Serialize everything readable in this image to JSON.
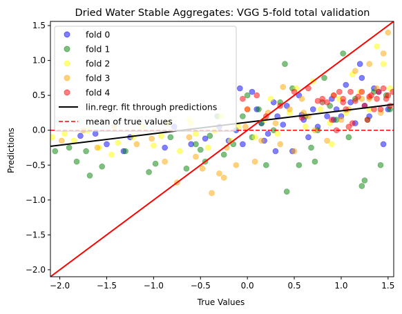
{
  "chart_data": {
    "type": "scatter",
    "title": "Dried Water Stable Aggregates: VGG 5-fold total validation",
    "xlabel": "True Values",
    "ylabel": "Predictions",
    "xlim": [
      -2.1,
      1.56
    ],
    "ylim": [
      -2.1,
      1.56
    ],
    "xticks": [
      -2.0,
      -1.5,
      -1.0,
      -0.5,
      0.0,
      0.5,
      1.0,
      1.5
    ],
    "yticks": [
      -2.0,
      -1.5,
      -1.0,
      -0.5,
      0.0,
      0.5,
      1.0,
      1.5
    ],
    "xtick_labels": [
      "−2.0",
      "−1.5",
      "−1.0",
      "−0.5",
      "0.0",
      "0.5",
      "1.0",
      "1.5"
    ],
    "ytick_labels": [
      "−2.0",
      "−1.5",
      "−1.0",
      "−0.5",
      "0.0",
      "0.5",
      "1.0",
      "1.5"
    ],
    "grid": false,
    "legend_position": "top-left",
    "series": [
      {
        "name": "fold 0",
        "color": "#0000ff",
        "x": [
          -1.78,
          -1.62,
          -1.5,
          -1.32,
          -1.25,
          -0.88,
          -0.78,
          -0.6,
          -0.45,
          -0.3,
          -0.2,
          -0.12,
          -0.05,
          0.05,
          0.1,
          0.15,
          0.22,
          0.28,
          0.32,
          0.38,
          0.42,
          0.48,
          0.55,
          0.6,
          0.65,
          0.7,
          0.75,
          0.8,
          0.85,
          0.9,
          0.95,
          1.0,
          1.05,
          1.1,
          1.15,
          1.2,
          1.25,
          1.3,
          1.35,
          1.4,
          1.45,
          1.5,
          -0.08,
          0.3,
          0.92,
          1.22,
          0.58,
          0.18
        ],
        "y": [
          -0.08,
          -0.05,
          -0.2,
          -0.3,
          -0.1,
          -0.25,
          0.05,
          -0.2,
          -0.12,
          0.05,
          -0.15,
          0.0,
          -0.2,
          0.55,
          0.3,
          0.1,
          -0.05,
          0.4,
          0.2,
          0.08,
          0.35,
          -0.3,
          0.5,
          0.15,
          -0.1,
          0.3,
          0.05,
          0.4,
          0.2,
          0.45,
          0.3,
          0.2,
          0.65,
          0.4,
          0.1,
          0.95,
          0.35,
          0.2,
          0.6,
          0.55,
          -0.2,
          0.3,
          0.6,
          -0.3,
          0.15,
          0.75,
          0.22,
          -0.15
        ]
      },
      {
        "name": "fold 1",
        "color": "#008000",
        "x": [
          -2.05,
          -1.9,
          -1.82,
          -1.72,
          -1.68,
          -1.55,
          -1.3,
          -1.05,
          -0.98,
          -0.82,
          -0.65,
          -0.55,
          -0.5,
          -0.45,
          -0.4,
          -0.32,
          -0.25,
          -0.15,
          -0.05,
          0.05,
          0.12,
          0.2,
          0.28,
          0.35,
          0.42,
          0.48,
          0.55,
          0.62,
          0.68,
          0.75,
          0.82,
          0.88,
          0.95,
          1.02,
          1.08,
          1.15,
          1.22,
          1.28,
          1.35,
          1.42,
          1.48,
          1.52,
          0.4,
          1.25,
          0.72,
          0.0,
          0.15
        ],
        "y": [
          -0.3,
          -0.25,
          -0.45,
          -0.3,
          -0.65,
          -0.52,
          -0.3,
          -0.6,
          -0.48,
          -0.1,
          -0.55,
          -0.2,
          -0.28,
          -0.45,
          -0.08,
          0.2,
          -0.35,
          -0.2,
          0.2,
          -0.1,
          0.3,
          -0.5,
          0.0,
          0.4,
          -0.88,
          0.6,
          -0.5,
          0.2,
          -0.25,
          0.0,
          0.75,
          0.35,
          0.15,
          1.1,
          -0.1,
          0.45,
          -0.8,
          0.15,
          0.55,
          -0.5,
          0.5,
          0.3,
          0.95,
          -0.72,
          -0.45,
          0.5,
          0.1
        ]
      },
      {
        "name": "fold 2",
        "color": "#ffff00",
        "x": [
          -2.08,
          -1.95,
          -1.85,
          -1.7,
          -1.58,
          -1.45,
          -1.38,
          -1.22,
          -1.12,
          -1.0,
          -0.92,
          -0.85,
          -0.72,
          -0.62,
          -0.55,
          -0.42,
          -0.35,
          -0.28,
          -0.18,
          -0.1,
          0.0,
          0.08,
          0.18,
          0.25,
          0.32,
          0.45,
          0.52,
          0.62,
          0.7,
          0.78,
          0.88,
          0.98,
          1.05,
          1.12,
          1.2,
          1.3,
          1.38,
          1.45,
          1.52,
          -0.6,
          0.9
        ],
        "y": [
          -0.1,
          -0.05,
          -0.15,
          0.0,
          -0.25,
          -0.35,
          -0.18,
          -0.1,
          0.05,
          -0.22,
          -0.08,
          0.1,
          -0.3,
          0.15,
          -0.05,
          -0.25,
          0.0,
          0.2,
          -0.15,
          0.05,
          0.3,
          -0.1,
          0.15,
          0.45,
          -0.05,
          0.25,
          0.6,
          0.05,
          0.7,
          0.3,
          0.1,
          0.45,
          0.25,
          0.8,
          0.55,
          0.3,
          1.2,
          0.95,
          0.6,
          0.1,
          -0.2
        ]
      },
      {
        "name": "fold 3",
        "color": "#ffa500",
        "x": [
          -1.98,
          -1.75,
          -1.6,
          -1.42,
          -1.18,
          -1.02,
          -0.88,
          -0.75,
          -0.62,
          -0.48,
          -0.38,
          -0.3,
          -0.22,
          -0.12,
          -0.02,
          0.08,
          0.15,
          0.22,
          0.3,
          0.38,
          0.45,
          0.5,
          0.58,
          0.65,
          0.72,
          0.8,
          0.85,
          0.92,
          1.0,
          1.08,
          1.15,
          1.22,
          1.3,
          1.38,
          1.45,
          1.5,
          -0.55,
          -0.25,
          0.35,
          0.6,
          1.3,
          1.42
        ],
        "y": [
          -0.15,
          0.0,
          -0.25,
          0.05,
          -0.2,
          -0.12,
          -0.45,
          -0.75,
          -0.1,
          -0.55,
          -0.9,
          -0.62,
          -0.25,
          -0.5,
          0.05,
          -0.45,
          -0.15,
          0.25,
          0.1,
          0.62,
          0.3,
          -0.3,
          0.45,
          0.2,
          0.0,
          0.4,
          -0.15,
          0.5,
          0.15,
          0.3,
          0.85,
          0.45,
          0.95,
          0.6,
          1.1,
          1.4,
          -0.38,
          -0.68,
          -0.2,
          0.25,
          0.45,
          0.25
        ]
      },
      {
        "name": "fold 4",
        "color": "#ff0000",
        "x": [
          -0.05,
          0.0,
          0.1,
          0.2,
          0.35,
          0.5,
          0.65,
          0.8,
          0.85,
          0.9,
          0.92,
          0.95,
          0.98,
          1.02,
          1.05,
          1.08,
          1.12,
          1.18,
          1.22,
          1.25,
          1.28,
          1.32,
          1.35,
          1.38,
          1.4,
          1.42,
          1.45,
          1.48,
          1.5,
          1.52,
          1.55,
          1.02,
          1.15,
          1.3,
          0.58,
          0.75,
          1.1
        ],
        "y": [
          0.45,
          0.3,
          0.5,
          0.2,
          0.35,
          0.55,
          0.6,
          0.45,
          0.4,
          0.15,
          0.5,
          0.0,
          0.55,
          0.45,
          0.3,
          0.05,
          0.1,
          0.48,
          0.55,
          0.35,
          0.15,
          0.5,
          0.3,
          0.45,
          0.55,
          0.3,
          0.6,
          0.45,
          0.5,
          0.35,
          0.55,
          0.4,
          0.42,
          0.48,
          0.18,
          0.42,
          0.55
        ]
      }
    ],
    "lines": [
      {
        "name": "lin.regr. fit through predictions",
        "color": "#000000",
        "style": "solid",
        "x": [
          -2.1,
          1.56
        ],
        "y": [
          -0.23,
          0.37
        ]
      },
      {
        "name": "mean of true values",
        "color": "#ff0000",
        "style": "dashed",
        "y_value": 0.0
      },
      {
        "name": "identity",
        "color": "#ff0000",
        "style": "solid",
        "x": [
          -2.1,
          1.56
        ],
        "y": [
          -2.1,
          1.56
        ]
      }
    ]
  }
}
